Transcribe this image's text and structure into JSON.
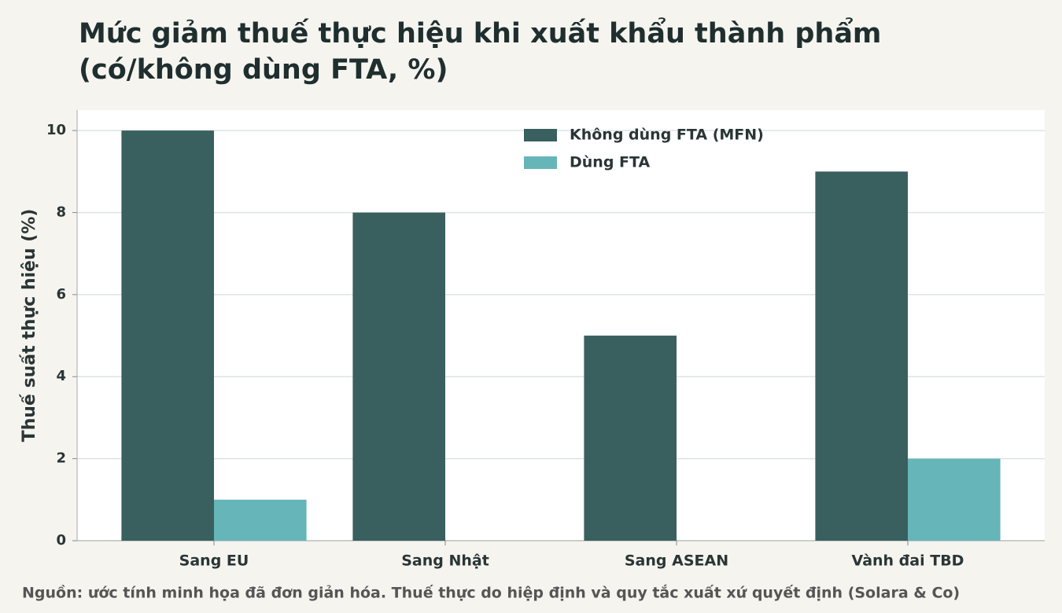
{
  "chart_data": {
    "type": "bar",
    "title": "Mức giảm thuế thực hiệu khi xuất khẩu thành phẩm (có/không dùng FTA, %)",
    "y_label": "Thuế suất thực hiệu (%)",
    "source": "Nguồn: ước tính minh họa đã đơn giản hóa. Thuế thực do hiệp định và quy tắc xuất xứ quyết định (Solara & Co)",
    "categories": [
      "Sang EU",
      "Sang Nhật",
      "Sang ASEAN",
      "Vành đai TBD"
    ],
    "series": [
      {
        "name": "Không dùng FTA (MFN)",
        "color": "#3a5f5f",
        "values": [
          10,
          8,
          5,
          9
        ]
      },
      {
        "name": "Dùng FTA",
        "color": "#66b5b8",
        "values": [
          1,
          0,
          0,
          2
        ]
      }
    ],
    "ylim": [
      0,
      10.5
    ],
    "yticks": [
      0,
      2,
      4,
      6,
      8,
      10
    ],
    "grid": true,
    "legend": "upper center"
  }
}
